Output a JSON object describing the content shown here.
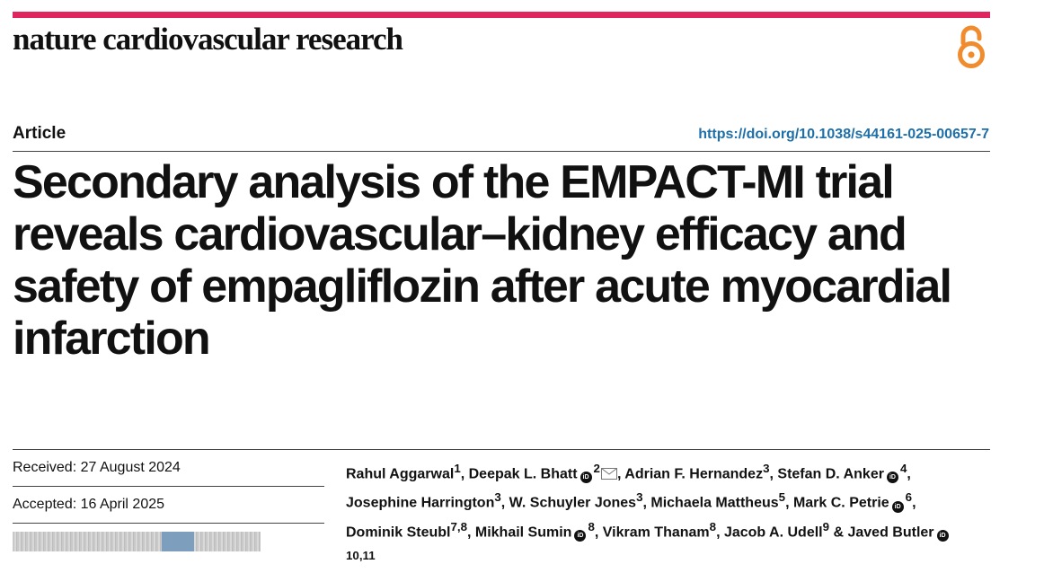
{
  "header": {
    "journal_name": "nature cardiovascular research",
    "accent_color": "#e0245e",
    "open_access_color": "#f08c2e",
    "open_access_icon": "open-access-icon"
  },
  "article": {
    "type": "Article",
    "doi": "https://doi.org/10.1038/s44161-025-00657-7",
    "title": "Secondary analysis of the EMPACT-MI trial reveals cardiovascular–kidney efficacy and safety of empagliflozin after acute myocardial infarction"
  },
  "dates": {
    "received_label": "Received:",
    "received_value": "27 August 2024",
    "accepted_label": "Accepted:",
    "accepted_value": "16 April 2025"
  },
  "authors": [
    {
      "name": "Rahul Aggarwal",
      "aff": "1",
      "orcid": false,
      "mail": false,
      "sep": ", "
    },
    {
      "name": "Deepak L. Bhatt",
      "aff": "2",
      "orcid": true,
      "mail": true,
      "sep": ", "
    },
    {
      "name": "Adrian F. Hernandez",
      "aff": "3",
      "orcid": false,
      "mail": false,
      "sep": ", "
    },
    {
      "name": "Stefan D. Anker",
      "aff": "4",
      "orcid": true,
      "mail": false,
      "sep": ", "
    },
    {
      "name": "Josephine Harrington",
      "aff": "3",
      "orcid": false,
      "mail": false,
      "sep": ", "
    },
    {
      "name": "W. Schuyler Jones",
      "aff": "3",
      "orcid": false,
      "mail": false,
      "sep": ", "
    },
    {
      "name": "Michaela Mattheus",
      "aff": "5",
      "orcid": false,
      "mail": false,
      "sep": ", "
    },
    {
      "name": "Mark C. Petrie",
      "aff": "6",
      "orcid": true,
      "mail": false,
      "sep": ", "
    },
    {
      "name": "Dominik Steubl",
      "aff": "7,8",
      "orcid": false,
      "mail": false,
      "sep": ", "
    },
    {
      "name": "Mikhail Sumin",
      "aff": "8",
      "orcid": true,
      "mail": false,
      "sep": ", "
    },
    {
      "name": "Vikram Thanam",
      "aff": "8",
      "orcid": false,
      "mail": false,
      "sep": ", "
    },
    {
      "name": "Jacob A. Udell",
      "aff": "9",
      "orcid": false,
      "mail": false,
      "sep": " & "
    },
    {
      "name": "Javed Butler",
      "aff": "10,11",
      "orcid": true,
      "mail": false,
      "sep": ""
    }
  ],
  "orcid_label": "iD"
}
